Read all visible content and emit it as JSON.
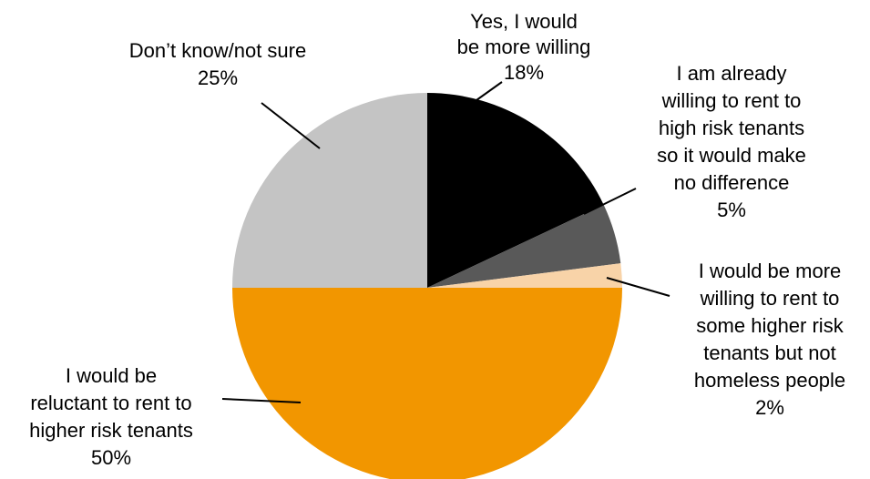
{
  "chart_data": {
    "type": "pie",
    "title": "",
    "slices": [
      {
        "label": "Yes, I would be more willing",
        "value": 18,
        "percent_label": "18%",
        "color": "#000000",
        "label_lines": [
          "Yes, I would",
          "be more willing",
          "18%"
        ]
      },
      {
        "label": "I am already willing to rent to high risk tenants so it would make no difference",
        "value": 5,
        "percent_label": "5%",
        "color": "#595959",
        "label_lines": [
          "I am already",
          "willing to rent to",
          "high risk tenants",
          "so it would make",
          "no difference",
          "5%"
        ]
      },
      {
        "label": "I would be more willing to rent to some higher risk tenants but not homeless people",
        "value": 2,
        "percent_label": "2%",
        "color": "#F8D3A8",
        "label_lines": [
          "I would be more",
          "willing to rent to",
          "some higher risk",
          "tenants but not",
          "homeless people",
          "2%"
        ]
      },
      {
        "label": "I would be reluctant to rent to higher risk tenants",
        "value": 50,
        "percent_label": "50%",
        "color": "#F29600",
        "label_lines": [
          "I would be",
          "reluctant to rent to",
          "higher risk tenants",
          "50%"
        ]
      },
      {
        "label": "Don’t know/not sure",
        "value": 25,
        "percent_label": "25%",
        "color": "#C4C4C4",
        "label_lines": [
          "Don’t know/not sure",
          "25%"
        ]
      }
    ],
    "legend": "none"
  }
}
